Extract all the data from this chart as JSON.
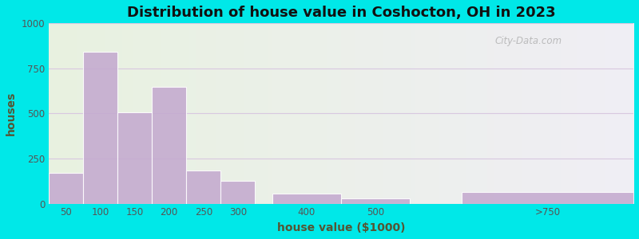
{
  "title": "Distribution of house value in Coshocton, OH in 2023",
  "xlabel": "house value ($1000)",
  "ylabel": "houses",
  "tick_positions": [
    50,
    100,
    150,
    200,
    250,
    300,
    400,
    500,
    750
  ],
  "tick_labels": [
    "50",
    "100",
    "150",
    "200",
    "250",
    "300",
    "400",
    "500",
    ">750"
  ],
  "bar_lefts": [
    25,
    75,
    125,
    175,
    225,
    275,
    350,
    450,
    625
  ],
  "bar_widths": [
    50,
    50,
    50,
    50,
    50,
    50,
    100,
    100,
    250
  ],
  "bar_values": [
    170,
    840,
    505,
    650,
    185,
    125,
    55,
    30,
    65
  ],
  "bar_color": "#c4aacf",
  "ylim": [
    0,
    1000
  ],
  "yticks": [
    0,
    250,
    500,
    750,
    1000
  ],
  "xlim": [
    25,
    875
  ],
  "bg_outer": "#00e8e8",
  "bg_left_color": "#e8f2e0",
  "bg_right_color": "#f0eef5",
  "title_color": "#111111",
  "axis_label_color": "#555533",
  "tick_color": "#555555",
  "grid_color": "#d8c8e0",
  "watermark": "City-Data.com",
  "title_fontsize": 13,
  "label_fontsize": 10
}
